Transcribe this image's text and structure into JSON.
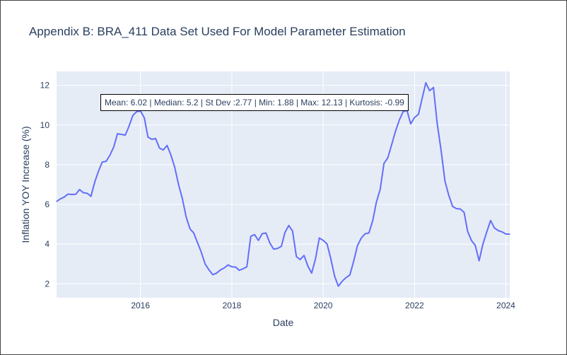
{
  "title": "Appendix B: BRA_411 Data Set Used For Model Parameter Estimation",
  "stats_annotation": "Mean: 6.02 | Median: 5.2 | St Dev :2.77 | Min: 1.88 | Max: 12.13 | Kurtosis: -0.99",
  "colors": {
    "plot_bg": "#e5ecf6",
    "line": "#636efa",
    "grid": "#ffffff",
    "text": "#2a3f5f"
  },
  "chart_data": {
    "type": "line",
    "title": "Appendix B: BRA_411 Data Set Used For Model Parameter Estimation",
    "xlabel": "Date",
    "ylabel": "Inflation YOY Increase (%)",
    "xlim": [
      "2014-03-01",
      "2024-02-01"
    ],
    "ylim": [
      1.3,
      12.7
    ],
    "x_ticks": [
      "2016",
      "2018",
      "2020",
      "2022",
      "2024"
    ],
    "y_ticks": [
      2,
      4,
      6,
      8,
      10,
      12
    ],
    "grid": true,
    "legend": false,
    "series": [
      {
        "points": [
          [
            "2014-03-01",
            6.15
          ],
          [
            "2014-04-01",
            6.28
          ],
          [
            "2014-05-01",
            6.37
          ],
          [
            "2014-06-01",
            6.52
          ],
          [
            "2014-07-01",
            6.5
          ],
          [
            "2014-08-01",
            6.51
          ],
          [
            "2014-09-01",
            6.75
          ],
          [
            "2014-10-01",
            6.59
          ],
          [
            "2014-11-01",
            6.56
          ],
          [
            "2014-12-01",
            6.41
          ],
          [
            "2015-01-01",
            7.14
          ],
          [
            "2015-02-01",
            7.7
          ],
          [
            "2015-03-01",
            8.13
          ],
          [
            "2015-04-01",
            8.17
          ],
          [
            "2015-05-01",
            8.47
          ],
          [
            "2015-06-01",
            8.89
          ],
          [
            "2015-07-01",
            9.56
          ],
          [
            "2015-08-01",
            9.53
          ],
          [
            "2015-09-01",
            9.49
          ],
          [
            "2015-10-01",
            9.93
          ],
          [
            "2015-11-01",
            10.48
          ],
          [
            "2015-12-01",
            10.67
          ],
          [
            "2016-01-01",
            10.71
          ],
          [
            "2016-02-01",
            10.36
          ],
          [
            "2016-03-01",
            9.39
          ],
          [
            "2016-04-01",
            9.28
          ],
          [
            "2016-05-01",
            9.32
          ],
          [
            "2016-06-01",
            8.84
          ],
          [
            "2016-07-01",
            8.74
          ],
          [
            "2016-08-01",
            8.97
          ],
          [
            "2016-09-01",
            8.48
          ],
          [
            "2016-10-01",
            7.87
          ],
          [
            "2016-11-01",
            6.99
          ],
          [
            "2016-12-01",
            6.29
          ],
          [
            "2017-01-01",
            5.35
          ],
          [
            "2017-02-01",
            4.76
          ],
          [
            "2017-03-01",
            4.57
          ],
          [
            "2017-04-01",
            4.08
          ],
          [
            "2017-05-01",
            3.6
          ],
          [
            "2017-06-01",
            3.0
          ],
          [
            "2017-07-01",
            2.71
          ],
          [
            "2017-08-01",
            2.46
          ],
          [
            "2017-09-01",
            2.54
          ],
          [
            "2017-10-01",
            2.7
          ],
          [
            "2017-11-01",
            2.8
          ],
          [
            "2017-12-01",
            2.95
          ],
          [
            "2018-01-01",
            2.86
          ],
          [
            "2018-02-01",
            2.84
          ],
          [
            "2018-03-01",
            2.68
          ],
          [
            "2018-04-01",
            2.76
          ],
          [
            "2018-05-01",
            2.86
          ],
          [
            "2018-06-01",
            4.39
          ],
          [
            "2018-07-01",
            4.48
          ],
          [
            "2018-08-01",
            4.19
          ],
          [
            "2018-09-01",
            4.53
          ],
          [
            "2018-10-01",
            4.56
          ],
          [
            "2018-11-01",
            4.05
          ],
          [
            "2018-12-01",
            3.75
          ],
          [
            "2019-01-01",
            3.78
          ],
          [
            "2019-02-01",
            3.89
          ],
          [
            "2019-03-01",
            4.58
          ],
          [
            "2019-04-01",
            4.94
          ],
          [
            "2019-05-01",
            4.66
          ],
          [
            "2019-06-01",
            3.37
          ],
          [
            "2019-07-01",
            3.22
          ],
          [
            "2019-08-01",
            3.43
          ],
          [
            "2019-09-01",
            2.89
          ],
          [
            "2019-10-01",
            2.54
          ],
          [
            "2019-11-01",
            3.27
          ],
          [
            "2019-12-01",
            4.31
          ],
          [
            "2020-01-01",
            4.19
          ],
          [
            "2020-02-01",
            4.01
          ],
          [
            "2020-03-01",
            3.3
          ],
          [
            "2020-04-01",
            2.4
          ],
          [
            "2020-05-01",
            1.88
          ],
          [
            "2020-06-01",
            2.13
          ],
          [
            "2020-07-01",
            2.31
          ],
          [
            "2020-08-01",
            2.44
          ],
          [
            "2020-09-01",
            3.14
          ],
          [
            "2020-10-01",
            3.92
          ],
          [
            "2020-11-01",
            4.31
          ],
          [
            "2020-12-01",
            4.52
          ],
          [
            "2021-01-01",
            4.56
          ],
          [
            "2021-02-01",
            5.2
          ],
          [
            "2021-03-01",
            6.1
          ],
          [
            "2021-04-01",
            6.76
          ],
          [
            "2021-05-01",
            8.06
          ],
          [
            "2021-06-01",
            8.35
          ],
          [
            "2021-07-01",
            8.99
          ],
          [
            "2021-08-01",
            9.68
          ],
          [
            "2021-09-01",
            10.25
          ],
          [
            "2021-10-01",
            10.67
          ],
          [
            "2021-11-01",
            10.74
          ],
          [
            "2021-12-01",
            10.06
          ],
          [
            "2022-01-01",
            10.38
          ],
          [
            "2022-02-01",
            10.54
          ],
          [
            "2022-03-01",
            11.3
          ],
          [
            "2022-04-01",
            12.13
          ],
          [
            "2022-05-01",
            11.73
          ],
          [
            "2022-06-01",
            11.89
          ],
          [
            "2022-07-01",
            10.07
          ],
          [
            "2022-08-01",
            8.73
          ],
          [
            "2022-09-01",
            7.17
          ],
          [
            "2022-10-01",
            6.47
          ],
          [
            "2022-11-01",
            5.9
          ],
          [
            "2022-12-01",
            5.79
          ],
          [
            "2023-01-01",
            5.77
          ],
          [
            "2023-02-01",
            5.6
          ],
          [
            "2023-03-01",
            4.65
          ],
          [
            "2023-04-01",
            4.18
          ],
          [
            "2023-05-01",
            3.94
          ],
          [
            "2023-06-01",
            3.16
          ],
          [
            "2023-07-01",
            3.99
          ],
          [
            "2023-08-01",
            4.61
          ],
          [
            "2023-09-01",
            5.19
          ],
          [
            "2023-10-01",
            4.82
          ],
          [
            "2023-11-01",
            4.68
          ],
          [
            "2023-12-01",
            4.62
          ],
          [
            "2024-01-01",
            4.51
          ],
          [
            "2024-02-01",
            4.5
          ]
        ]
      }
    ]
  }
}
